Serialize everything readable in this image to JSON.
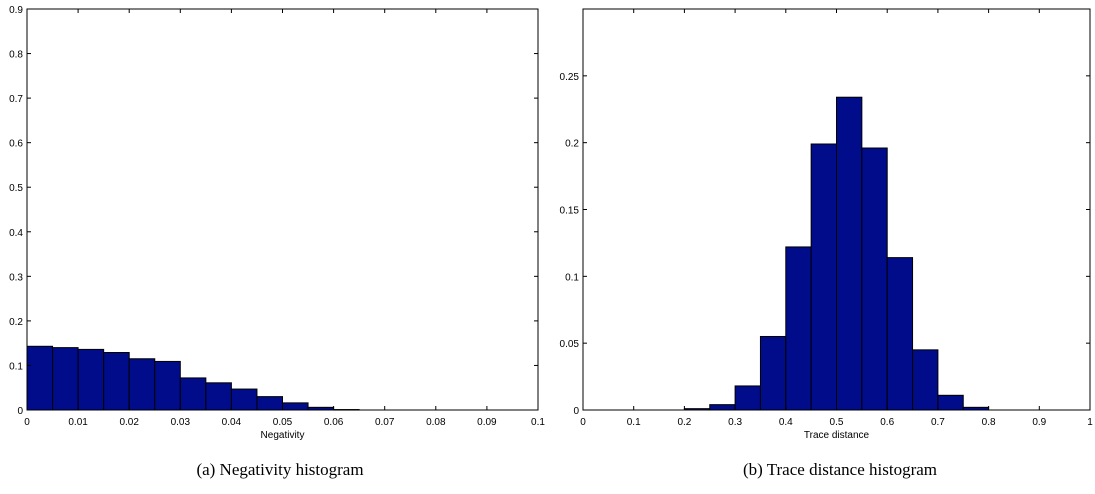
{
  "chart_data": [
    {
      "type": "bar",
      "caption": "(a) Negativity histogram",
      "xlabel": "Negativity",
      "ylabel": "",
      "xlim": [
        0,
        0.1
      ],
      "ylim": [
        0,
        0.9
      ],
      "xticks": [
        "0",
        "0.01",
        "0.02",
        "0.03",
        "0.04",
        "0.05",
        "0.06",
        "0.07",
        "0.08",
        "0.09",
        "0.1"
      ],
      "yticks": [
        "0",
        "0.1",
        "0.2",
        "0.3",
        "0.4",
        "0.5",
        "0.6",
        "0.7",
        "0.8",
        "0.9"
      ],
      "bin_width": 0.005,
      "bin_starts": [
        0,
        0.005,
        0.01,
        0.015,
        0.02,
        0.025,
        0.03,
        0.035,
        0.04,
        0.045,
        0.05,
        0.055,
        0.06,
        0.065,
        0.07,
        0.075,
        0.08,
        0.085,
        0.09,
        0.095
      ],
      "values": [
        0.143,
        0.14,
        0.136,
        0.129,
        0.115,
        0.109,
        0.072,
        0.061,
        0.047,
        0.03,
        0.016,
        0.006,
        0.001,
        0,
        0,
        0,
        0,
        0,
        0,
        0
      ],
      "bar_color": "#000c8a",
      "grid": false
    },
    {
      "type": "bar",
      "caption": "(b) Trace distance histogram",
      "xlabel": "Trace distance",
      "ylabel": "",
      "xlim": [
        0,
        1
      ],
      "ylim": [
        0,
        0.3
      ],
      "xticks": [
        "0",
        "0.1",
        "0.2",
        "0.3",
        "0.4",
        "0.5",
        "0.6",
        "0.7",
        "0.8",
        "0.9",
        "1"
      ],
      "yticks": [
        "0",
        "0.05",
        "0.1",
        "0.15",
        "0.2",
        "0.25"
      ],
      "bin_width": 0.05,
      "bin_starts": [
        0,
        0.05,
        0.1,
        0.15,
        0.2,
        0.25,
        0.3,
        0.35,
        0.4,
        0.45,
        0.5,
        0.55,
        0.6,
        0.65,
        0.7,
        0.75,
        0.8,
        0.85,
        0.9,
        0.95
      ],
      "values": [
        0,
        0,
        0,
        0,
        0.001,
        0.004,
        0.018,
        0.055,
        0.122,
        0.199,
        0.234,
        0.196,
        0.114,
        0.045,
        0.011,
        0.002,
        0,
        0,
        0,
        0
      ],
      "bar_color": "#000c8a",
      "grid": false
    }
  ]
}
